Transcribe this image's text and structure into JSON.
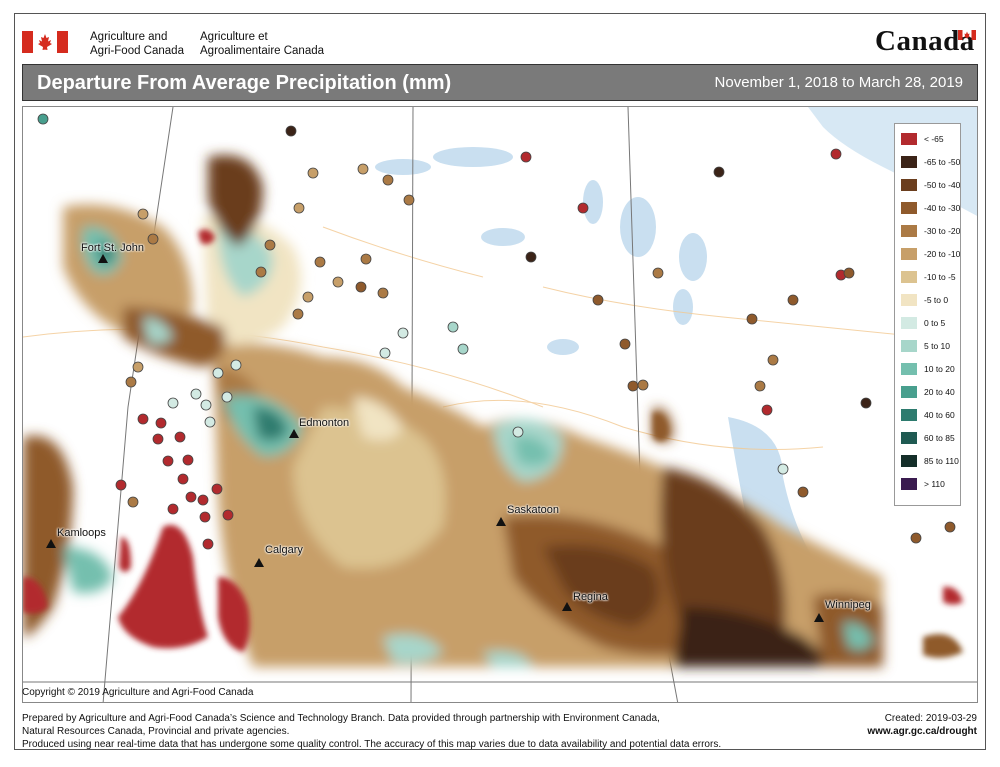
{
  "header": {
    "dept_en": [
      "Agriculture and",
      "Agri-Food Canada"
    ],
    "dept_fr": [
      "Agriculture et",
      "Agroalimentaire Canada"
    ],
    "wordmark": "Canada",
    "title": "Departure From Average Precipitation (mm)",
    "date_range": "November 1, 2018 to March 28, 2019"
  },
  "legend": [
    {
      "label": "< -65",
      "color": "#b22a2e"
    },
    {
      "label": "-65 to -50",
      "color": "#3b2317"
    },
    {
      "label": "-50 to -40",
      "color": "#6b3e1e"
    },
    {
      "label": "-40 to -30",
      "color": "#8f5a2c"
    },
    {
      "label": "-30 to -20",
      "color": "#ab7a45"
    },
    {
      "label": "-20 to -10",
      "color": "#c79f69"
    },
    {
      "label": "-10 to -5",
      "color": "#dcc390"
    },
    {
      "label": "-5 to 0",
      "color": "#f1e4c3"
    },
    {
      "label": "0 to 5",
      "color": "#d3eae3"
    },
    {
      "label": "5 to 10",
      "color": "#a7d6ca"
    },
    {
      "label": "10 to 20",
      "color": "#74bfae"
    },
    {
      "label": "20 to 40",
      "color": "#489f8e"
    },
    {
      "label": "40 to 60",
      "color": "#2d7b6e"
    },
    {
      "label": "60 to 85",
      "color": "#1f5a52"
    },
    {
      "label": "85 to 110",
      "color": "#142e29"
    },
    {
      "label": "> 110",
      "color": "#3a1b4f"
    }
  ],
  "cities": [
    {
      "name": "Fort St. John"
    },
    {
      "name": "Edmonton"
    },
    {
      "name": "Kamloops"
    },
    {
      "name": "Calgary"
    },
    {
      "name": "Saskatoon"
    },
    {
      "name": "Regina"
    },
    {
      "name": "Winnipeg"
    }
  ],
  "copyright": "Copyright © 2019 Agriculture and Agri-Food Canada",
  "footer": {
    "line1": "Prepared by Agriculture and Agri-Food Canada’s Science and Technology Branch. Data provided through partnership with Environment Canada,",
    "line2": "Natural Resources Canada, Provincial and private agencies.",
    "line3": "Produced using near real-time data that has undergone some quality control. The accuracy of this map varies due to data availability and potential data errors.",
    "created": "Created: 2019-03-29",
    "url": "www.agr.gc.ca/drought"
  }
}
